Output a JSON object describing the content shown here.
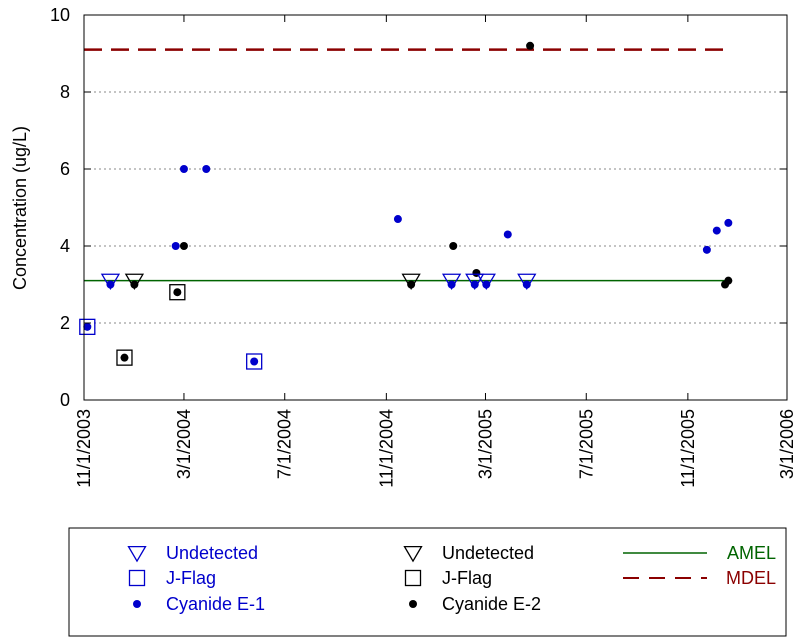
{
  "chart_data": {
    "type": "scatter",
    "title": "",
    "xlabel": "",
    "ylabel": "Concentration (ug/L)",
    "ylim": [
      0,
      10
    ],
    "xlim": [
      "2003-11-01",
      "2006-03-01"
    ],
    "grid": "horizontal dotted",
    "y_ticks": [
      "0",
      "2",
      "4",
      "6",
      "8",
      "10"
    ],
    "x_ticks": [
      {
        "date": "2003-11-01",
        "label": "11/1/2003"
      },
      {
        "date": "2004-03-01",
        "label": "3/1/2004"
      },
      {
        "date": "2004-07-01",
        "label": "7/1/2004"
      },
      {
        "date": "2004-11-01",
        "label": "11/1/2004"
      },
      {
        "date": "2005-03-01",
        "label": "3/1/2005"
      },
      {
        "date": "2005-07-01",
        "label": "7/1/2005"
      },
      {
        "date": "2005-11-01",
        "label": "11/1/2005"
      },
      {
        "date": "2006-03-01",
        "label": "3/1/2006"
      }
    ],
    "series": [
      {
        "name": "Cyanide E-1",
        "color": "#0000cc",
        "marker": "dot",
        "points": [
          {
            "x": "2003-11-05",
            "y": 1.9
          },
          {
            "x": "2003-12-03",
            "y": 3.0
          },
          {
            "x": "2004-02-20",
            "y": 4.0
          },
          {
            "x": "2004-03-01",
            "y": 6.0
          },
          {
            "x": "2004-03-28",
            "y": 6.0
          },
          {
            "x": "2004-05-25",
            "y": 1.0
          },
          {
            "x": "2004-11-15",
            "y": 4.7
          },
          {
            "x": "2005-01-19",
            "y": 3.0
          },
          {
            "x": "2005-02-16",
            "y": 3.0
          },
          {
            "x": "2005-03-02",
            "y": 3.0
          },
          {
            "x": "2005-03-28",
            "y": 4.3
          },
          {
            "x": "2005-04-20",
            "y": 3.0
          },
          {
            "x": "2005-11-24",
            "y": 3.9
          },
          {
            "x": "2005-12-06",
            "y": 4.4
          },
          {
            "x": "2005-12-20",
            "y": 4.6
          }
        ]
      },
      {
        "name": "Cyanide E-2",
        "color": "#000000",
        "marker": "dot",
        "points": [
          {
            "x": "2003-12-20",
            "y": 1.1
          },
          {
            "x": "2004-01-01",
            "y": 3.0
          },
          {
            "x": "2004-02-22",
            "y": 2.8
          },
          {
            "x": "2004-03-01",
            "y": 4.0
          },
          {
            "x": "2004-12-01",
            "y": 3.0
          },
          {
            "x": "2005-01-21",
            "y": 4.0
          },
          {
            "x": "2005-02-18",
            "y": 3.3
          },
          {
            "x": "2005-04-24",
            "y": 9.2
          },
          {
            "x": "2005-12-16",
            "y": 3.0
          },
          {
            "x": "2005-12-20",
            "y": 3.1
          }
        ]
      },
      {
        "name": "Undetected",
        "site": "E-1",
        "color": "#0000cc",
        "marker": "triangle-down-open",
        "points": [
          {
            "x": "2003-12-03",
            "y": 3.1
          },
          {
            "x": "2005-01-19",
            "y": 3.1
          },
          {
            "x": "2005-02-16",
            "y": 3.1
          },
          {
            "x": "2005-03-02",
            "y": 3.1
          },
          {
            "x": "2005-04-20",
            "y": 3.1
          }
        ]
      },
      {
        "name": "Undetected",
        "site": "E-2",
        "color": "#000000",
        "marker": "triangle-down-open",
        "points": [
          {
            "x": "2004-01-01",
            "y": 3.1
          },
          {
            "x": "2004-12-01",
            "y": 3.1
          }
        ]
      },
      {
        "name": "J-Flag",
        "site": "E-1",
        "color": "#0000cc",
        "marker": "square-open",
        "points": [
          {
            "x": "2003-11-05",
            "y": 1.9
          },
          {
            "x": "2004-05-25",
            "y": 1.0
          }
        ]
      },
      {
        "name": "J-Flag",
        "site": "E-2",
        "color": "#000000",
        "marker": "square-open",
        "points": [
          {
            "x": "2003-12-20",
            "y": 1.1
          },
          {
            "x": "2004-02-22",
            "y": 2.8
          }
        ]
      }
    ],
    "lines": [
      {
        "name": "AMEL",
        "color": "#006400",
        "style": "solid",
        "y": 3.1,
        "x_from": "2003-11-01",
        "x_to": "2005-12-20"
      },
      {
        "name": "MDEL",
        "color": "#8b0000",
        "style": "dashed",
        "y": 9.1,
        "x_from": "2003-11-01",
        "x_to": "2005-12-20"
      }
    ],
    "legend_position": "bottom",
    "legend": [
      {
        "label": "Undetected",
        "marker": "triangle-down-open",
        "color": "#0000cc"
      },
      {
        "label": "Undetected",
        "marker": "triangle-down-open",
        "color": "#000000"
      },
      {
        "label": "AMEL",
        "marker": "line-solid",
        "color": "#006400"
      },
      {
        "label": "J-Flag",
        "marker": "square-open",
        "color": "#0000cc"
      },
      {
        "label": "J-Flag",
        "marker": "square-open",
        "color": "#000000"
      },
      {
        "label": "MDEL",
        "marker": "line-dashed",
        "color": "#8b0000"
      },
      {
        "label": "Cyanide E-1",
        "marker": "dot",
        "color": "#0000cc"
      },
      {
        "label": "Cyanide E-2",
        "marker": "dot",
        "color": "#000000"
      }
    ]
  }
}
